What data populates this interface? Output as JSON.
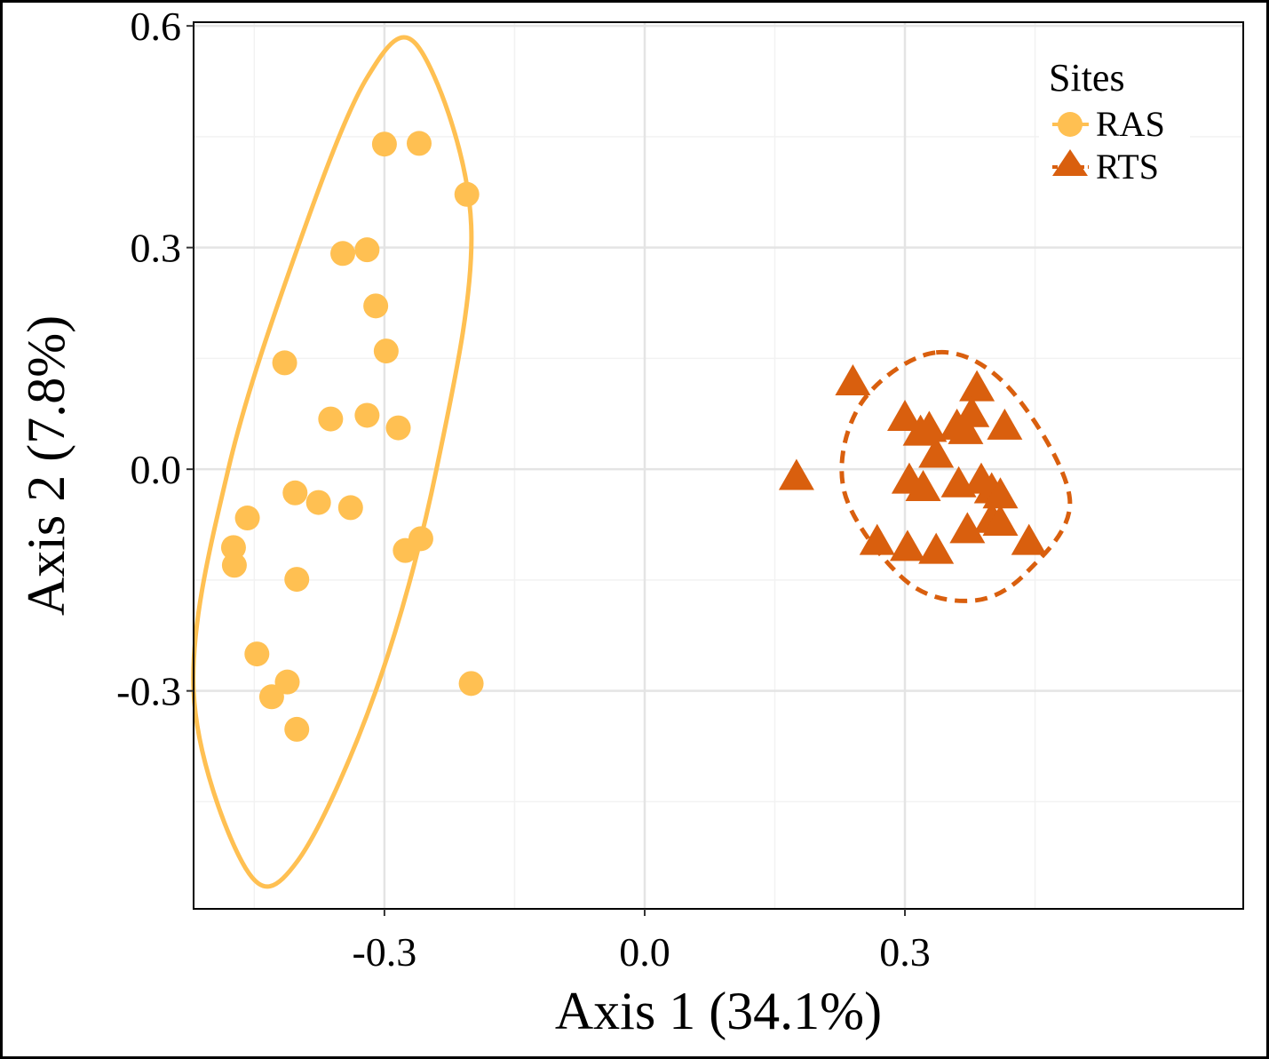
{
  "chart_data": {
    "type": "scatter",
    "title": "",
    "xlabel": "Axis 1 (34.1%)",
    "ylabel": "Axis 2 (7.8%)",
    "xlim": [
      -0.52,
      0.69
    ],
    "ylim": [
      -0.595,
      0.605
    ],
    "x_ticks": [
      -0.3,
      0.0,
      0.3
    ],
    "x_tick_labels": [
      "-0.3",
      "0.0",
      "0.3"
    ],
    "y_ticks": [
      -0.3,
      0.0,
      0.3,
      0.6
    ],
    "y_tick_labels": [
      "-0.3",
      "0.0",
      "0.3",
      "0.6"
    ],
    "grid": true,
    "legend": {
      "title": "Sites",
      "position": "top-right",
      "entries": [
        {
          "label": "RAS",
          "shape": "circle"
        },
        {
          "label": "RTS",
          "shape": "triangle"
        }
      ]
    },
    "series": [
      {
        "name": "RAS",
        "color": "#FFC052",
        "marker": "circle",
        "points": [
          {
            "x": -0.3,
            "y": 0.44
          },
          {
            "x": -0.26,
            "y": 0.441
          },
          {
            "x": -0.205,
            "y": 0.372
          },
          {
            "x": -0.348,
            "y": 0.292
          },
          {
            "x": -0.32,
            "y": 0.297
          },
          {
            "x": -0.31,
            "y": 0.221
          },
          {
            "x": -0.415,
            "y": 0.144
          },
          {
            "x": -0.298,
            "y": 0.16
          },
          {
            "x": -0.362,
            "y": 0.068
          },
          {
            "x": -0.32,
            "y": 0.073
          },
          {
            "x": -0.284,
            "y": 0.056
          },
          {
            "x": -0.403,
            "y": -0.032
          },
          {
            "x": -0.376,
            "y": -0.045
          },
          {
            "x": -0.339,
            "y": -0.052
          },
          {
            "x": -0.458,
            "y": -0.066
          },
          {
            "x": -0.474,
            "y": -0.106
          },
          {
            "x": -0.473,
            "y": -0.13
          },
          {
            "x": -0.276,
            "y": -0.11
          },
          {
            "x": -0.258,
            "y": -0.094
          },
          {
            "x": -0.401,
            "y": -0.149
          },
          {
            "x": -0.447,
            "y": -0.25
          },
          {
            "x": -0.412,
            "y": -0.288
          },
          {
            "x": -0.43,
            "y": -0.308
          },
          {
            "x": -0.401,
            "y": -0.352
          },
          {
            "x": -0.2,
            "y": -0.29
          }
        ]
      },
      {
        "name": "RTS",
        "color": "#D95F0E",
        "marker": "triangle",
        "points": [
          {
            "x": 0.24,
            "y": 0.118
          },
          {
            "x": 0.383,
            "y": 0.11
          },
          {
            "x": 0.377,
            "y": 0.075
          },
          {
            "x": 0.3,
            "y": 0.07
          },
          {
            "x": 0.328,
            "y": 0.055
          },
          {
            "x": 0.318,
            "y": 0.05
          },
          {
            "x": 0.36,
            "y": 0.058
          },
          {
            "x": 0.37,
            "y": 0.052
          },
          {
            "x": 0.415,
            "y": 0.058
          },
          {
            "x": 0.336,
            "y": 0.02
          },
          {
            "x": 0.175,
            "y": -0.01
          },
          {
            "x": 0.305,
            "y": -0.015
          },
          {
            "x": 0.321,
            "y": -0.025
          },
          {
            "x": 0.362,
            "y": -0.02
          },
          {
            "x": 0.388,
            "y": -0.015
          },
          {
            "x": 0.4,
            "y": -0.028
          },
          {
            "x": 0.41,
            "y": -0.035
          },
          {
            "x": 0.4,
            "y": -0.068
          },
          {
            "x": 0.41,
            "y": -0.072
          },
          {
            "x": 0.372,
            "y": -0.082
          },
          {
            "x": 0.268,
            "y": -0.098
          },
          {
            "x": 0.303,
            "y": -0.106
          },
          {
            "x": 0.336,
            "y": -0.11
          },
          {
            "x": 0.443,
            "y": -0.098
          }
        ]
      }
    ],
    "ellipses": [
      {
        "series": "RAS",
        "line": "solid",
        "points": [
          [
            -0.26,
            0.57
          ],
          [
            -0.2,
            0.33
          ],
          [
            -0.24,
            0.0
          ],
          [
            -0.31,
            -0.3
          ],
          [
            -0.4,
            -0.53
          ],
          [
            -0.46,
            -0.54
          ],
          [
            -0.52,
            -0.3
          ],
          [
            -0.48,
            0.0
          ],
          [
            -0.4,
            0.3
          ],
          [
            -0.32,
            0.53
          ]
        ]
      },
      {
        "series": "RTS",
        "line": "dashed",
        "points": [
          [
            0.336,
            0.158
          ],
          [
            0.42,
            0.11
          ],
          [
            0.49,
            -0.04
          ],
          [
            0.44,
            -0.14
          ],
          [
            0.377,
            -0.178
          ],
          [
            0.3,
            -0.15
          ],
          [
            0.23,
            -0.03
          ],
          [
            0.25,
            0.09
          ]
        ]
      }
    ]
  }
}
